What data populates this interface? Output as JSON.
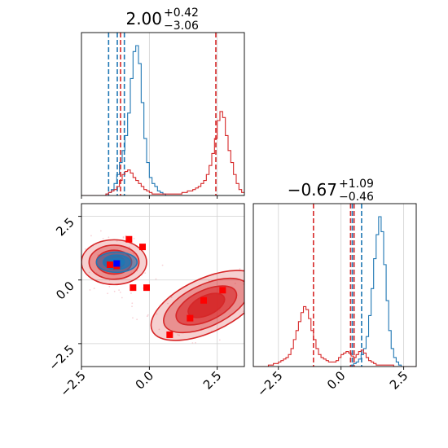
{
  "chart_data": [
    {
      "type": "histogram",
      "panel": "top-left",
      "title": {
        "value": "2.00",
        "plus": "+0.42",
        "minus": "−3.06"
      },
      "xlim": [
        -2.5,
        3.5
      ],
      "grid": true,
      "colors": {
        "blue": "#1f77b4",
        "red": "#d62728"
      },
      "series": [
        {
          "color": "#1f77b4",
          "bin_start": -2.5,
          "bin_width": 0.1,
          "counts": [
            0,
            0,
            0,
            0,
            0,
            0,
            0,
            0,
            0,
            1,
            2,
            4,
            8,
            14,
            22,
            30,
            40,
            55,
            78,
            96,
            100,
            88,
            62,
            38,
            22,
            12,
            8,
            6,
            3,
            2,
            1,
            0,
            0,
            0,
            0,
            0,
            0,
            0,
            0,
            0,
            0,
            0,
            0,
            0,
            0,
            0,
            0,
            0,
            0,
            0,
            0,
            0,
            0,
            0,
            0,
            0,
            0,
            0,
            0,
            0
          ],
          "quantiles": [
            -1.5,
            -1.18,
            -0.92
          ]
        },
        {
          "color": "#d62728",
          "bin_start": -2.5,
          "bin_width": 0.1,
          "counts": [
            0,
            0,
            0,
            0,
            0,
            0,
            0,
            0,
            0,
            1,
            2,
            3,
            4,
            6,
            10,
            14,
            16,
            17,
            15,
            12,
            10,
            8,
            6,
            4,
            3,
            2,
            1,
            1,
            1,
            1,
            1,
            1,
            1,
            1,
            1,
            1,
            1,
            2,
            2,
            3,
            3,
            4,
            5,
            6,
            8,
            10,
            14,
            20,
            28,
            38,
            50,
            56,
            52,
            40,
            30,
            22,
            14,
            8,
            4,
            2
          ],
          "quantiles": [
            -1.06,
            2.45
          ]
        }
      ]
    },
    {
      "type": "scatter-contour",
      "panel": "bottom-left",
      "xlim": [
        -2.5,
        3.5
      ],
      "ylim": [
        -3.4,
        3.0
      ],
      "xticks": [
        "−2.5",
        "0.0",
        "2.5"
      ],
      "yticks": [
        "2.5",
        "0.0",
        "−2.5"
      ],
      "grid": true,
      "contours": [
        {
          "color": "#d62728",
          "center": [
            -1.3,
            0.7
          ],
          "rx": [
            1.2,
            0.92,
            0.65,
            0.38
          ],
          "ry": [
            0.88,
            0.67,
            0.47,
            0.27
          ],
          "rotation_deg": 0
        },
        {
          "color": "#d62728",
          "center": [
            2.1,
            -1.0
          ],
          "rx": [
            2.2,
            1.7,
            1.2,
            0.72
          ],
          "ry": [
            1.05,
            0.82,
            0.6,
            0.38
          ],
          "rotation_deg": -25
        },
        {
          "color": "#1f77b4",
          "center": [
            -1.2,
            0.7
          ],
          "rx": [
            0.75,
            0.5,
            0.28
          ],
          "ry": [
            0.4,
            0.28,
            0.15
          ],
          "rotation_deg": 0
        }
      ],
      "points_red": [
        [
          -0.75,
          1.6
        ],
        [
          -0.25,
          1.3
        ],
        [
          -1.45,
          0.6
        ],
        [
          -1.2,
          0.55
        ],
        [
          -0.6,
          -0.3
        ],
        [
          -0.1,
          -0.3
        ],
        [
          2.0,
          -0.8
        ],
        [
          2.7,
          -0.4
        ],
        [
          1.5,
          -1.5
        ],
        [
          0.75,
          -2.15
        ]
      ],
      "points_blue": [
        [
          -1.2,
          0.65
        ]
      ]
    },
    {
      "type": "histogram",
      "panel": "bottom-right",
      "title": {
        "value": "−0.67",
        "plus": "+1.09",
        "minus": "−0.46"
      },
      "xlim": [
        -3.5,
        3.0
      ],
      "xticks": [
        "−2.5",
        "0.0",
        "2.5"
      ],
      "grid": true,
      "series": [
        {
          "color": "#1f77b4",
          "bin_start": -3.5,
          "bin_width": 0.1,
          "counts": [
            0,
            0,
            0,
            0,
            0,
            0,
            0,
            0,
            0,
            0,
            0,
            0,
            0,
            0,
            0,
            0,
            0,
            0,
            0,
            0,
            0,
            0,
            0,
            0,
            0,
            0,
            0,
            0,
            0,
            0,
            0,
            0,
            0,
            0,
            0,
            0,
            0,
            0,
            0,
            1,
            2,
            3,
            5,
            8,
            12,
            20,
            34,
            52,
            72,
            88,
            100,
            90,
            68,
            44,
            24,
            12,
            6,
            3,
            1,
            0,
            0,
            0,
            0,
            0,
            0
          ],
          "quantiles": [
            0.45,
            0.82
          ]
        },
        {
          "color": "#d62728",
          "bin_start": -3.5,
          "bin_width": 0.1,
          "counts": [
            0,
            0,
            0,
            0,
            0,
            0,
            1,
            1,
            2,
            2,
            3,
            4,
            5,
            6,
            8,
            12,
            18,
            24,
            30,
            36,
            40,
            38,
            32,
            24,
            18,
            12,
            8,
            6,
            5,
            4,
            3,
            3,
            3,
            4,
            6,
            8,
            9,
            10,
            9,
            7,
            6,
            8,
            10,
            11,
            9,
            6,
            4,
            3,
            2,
            1,
            1,
            1,
            1,
            1,
            1,
            1,
            0,
            0,
            0,
            0,
            0,
            0,
            0,
            0,
            0
          ],
          "quantiles": [
            -1.1,
            0.38,
            0.52
          ]
        }
      ]
    }
  ]
}
